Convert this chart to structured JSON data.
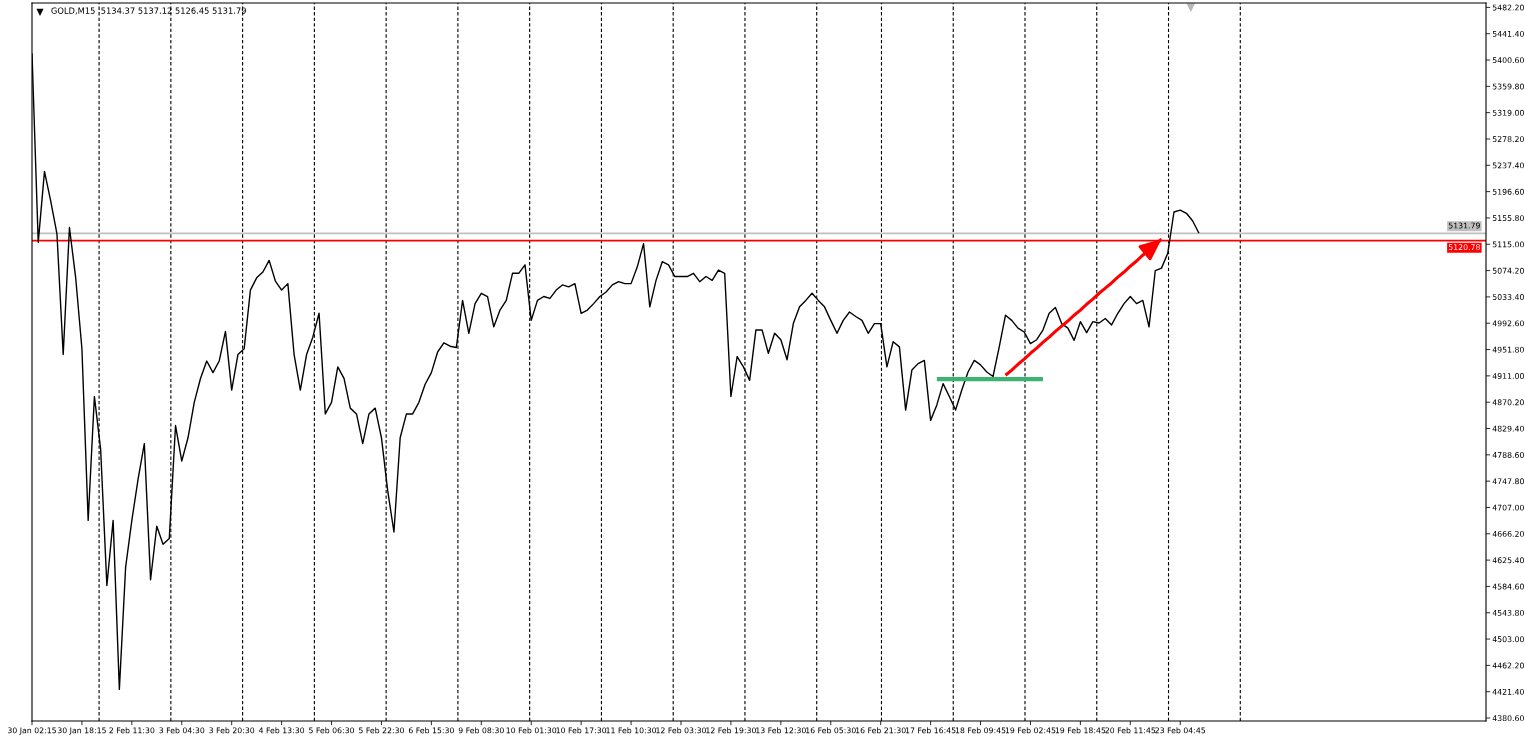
{
  "chart_data": {
    "type": "line",
    "title": "GOLD,M15  5134.37 5137.12 5126.45 5131.79",
    "categories": [
      "30 Jan 02:15",
      null,
      null,
      null,
      null,
      null,
      null,
      null,
      "30 Jan 18:15",
      null,
      null,
      null,
      null,
      null,
      null,
      null,
      "2 Feb 11:30",
      null,
      null,
      null,
      null,
      null,
      null,
      null,
      "3 Feb 04:30",
      null,
      null,
      null,
      null,
      null,
      null,
      null,
      "3 Feb 20:30",
      null,
      null,
      null,
      null,
      null,
      null,
      null,
      "4 Feb 13:30",
      null,
      null,
      null,
      null,
      null,
      null,
      null,
      "5 Feb 06:30",
      null,
      null,
      null,
      null,
      null,
      null,
      null,
      "5 Feb 22:30",
      null,
      null,
      null,
      null,
      null,
      null,
      null,
      "6 Feb 15:30",
      null,
      null,
      null,
      null,
      null,
      null,
      null,
      "9 Feb 08:30",
      null,
      null,
      null,
      null,
      null,
      null,
      null,
      "10 Feb 01:30",
      null,
      null,
      null,
      null,
      null,
      null,
      null,
      "10 Feb 17:30",
      null,
      null,
      null,
      null,
      null,
      null,
      null,
      "11 Feb 10:30",
      null,
      null,
      null,
      null,
      null,
      null,
      null,
      "12 Feb 03:30",
      null,
      null,
      null,
      null,
      null,
      null,
      null,
      "12 Feb 19:30",
      null,
      null,
      null,
      null,
      null,
      null,
      null,
      "13 Feb 12:30",
      null,
      null,
      null,
      null,
      null,
      null,
      null,
      "16 Feb 05:30",
      null,
      null,
      null,
      null,
      null,
      null,
      null,
      "16 Feb 21:30",
      null,
      null,
      null,
      null,
      null,
      null,
      null,
      "17 Feb 16:45",
      null,
      null,
      null,
      null,
      null,
      null,
      null,
      "18 Feb 09:45",
      null,
      null,
      null,
      null,
      null,
      null,
      null,
      "19 Feb 02:45",
      null,
      null,
      null,
      null,
      null,
      null,
      null,
      "19 Feb 18:45",
      null,
      null,
      null,
      null,
      null,
      null,
      null,
      "20 Feb 11:45",
      null,
      null,
      null,
      null,
      null,
      null,
      null,
      "23 Feb 04:45",
      null,
      null,
      null,
      null,
      null,
      null,
      null,
      null,
      null,
      null,
      null,
      null,
      null,
      null,
      null,
      null,
      null,
      null,
      null,
      null,
      null,
      null,
      null,
      null,
      null,
      null,
      null,
      null,
      null,
      null,
      null,
      null,
      null,
      null,
      null,
      null,
      null,
      null,
      null,
      null,
      null,
      null,
      null,
      null,
      null,
      null,
      null,
      null,
      null
    ],
    "series": [
      {
        "color": "#000000",
        "values": [
          5411,
          5118,
          5228,
          5182,
          5131,
          4944,
          5141,
          5063,
          4953,
          4687,
          4879,
          4797,
          4586,
          4687,
          4425,
          4614,
          4687,
          4751,
          4806,
          4595,
          4678,
          4650,
          4659,
          4834,
          4779,
          4815,
          4870,
          4907,
          4934,
          4916,
          4934,
          4980,
          4889,
          4944,
          4953,
          5044,
          5063,
          5072,
          5090,
          5058,
          5044,
          5054,
          4944,
          4889,
          4944,
          4971,
          5008,
          4852,
          4870,
          4925,
          4907,
          4861,
          4852,
          4806,
          4852,
          4861,
          4815,
          4733,
          4669,
          4815,
          4852,
          4852,
          4870,
          4898,
          4916,
          4948,
          4962,
          4957,
          4955,
          5028,
          4977,
          5023,
          5039,
          5034,
          4987,
          5013,
          5028,
          5070,
          5070,
          5083,
          4997,
          5028,
          5034,
          5031,
          5044,
          5052,
          5049,
          5054,
          5008,
          5013,
          5023,
          5034,
          5041,
          5052,
          5057,
          5054,
          5054,
          5080,
          5116,
          5018,
          5059,
          5088,
          5083,
          5065,
          5065,
          5065,
          5070,
          5057,
          5065,
          5059,
          5075,
          5070,
          4879,
          4941,
          4925,
          4904,
          4982,
          4982,
          4946,
          4977,
          4967,
          4936,
          4992,
          5018,
          5028,
          5039,
          5028,
          5018,
          4997,
          4977,
          4997,
          5010,
          5003,
          4997,
          4977,
          4992,
          4992,
          4925,
          4964,
          4956,
          4858,
          4920,
          4930,
          4935,
          4842,
          4866,
          4899,
          4879,
          4858,
          4889,
          4917,
          4935,
          4928,
          4917,
          4910,
          4956,
          5005,
          4997,
          4985,
          4979,
          4961,
          4967,
          4982,
          5008,
          5017,
          4992,
          4985,
          4966,
          4995,
          4978,
          4995,
          4993,
          5000,
          4990,
          5008,
          5023,
          5034,
          5023,
          5028,
          4987,
          5074,
          5078,
          5101,
          5165,
          5168,
          5163,
          5151,
          5132,
          null,
          null,
          null,
          null,
          null,
          null,
          null,
          null,
          null,
          null,
          null,
          null,
          null,
          null,
          null,
          null,
          null,
          null,
          null,
          null,
          null,
          null,
          null,
          null,
          null,
          null,
          null,
          null,
          null,
          null,
          null,
          null,
          null,
          null,
          null,
          null,
          null,
          null,
          null,
          null,
          null,
          null,
          null,
          null,
          null,
          null
        ]
      },
      {
        "type": "line",
        "color": "#3cb371",
        "values": [
          null,
          null,
          null,
          null,
          null,
          null,
          null,
          null,
          null,
          null,
          null,
          null,
          null,
          null,
          null,
          null,
          null,
          null,
          null,
          null,
          null,
          null,
          null,
          null,
          null,
          null,
          null,
          null,
          null,
          null,
          null,
          null,
          null,
          null,
          null,
          null,
          null,
          null,
          null,
          null,
          null,
          null,
          null,
          null,
          null,
          null,
          null,
          null,
          null,
          null,
          null,
          null,
          null,
          null,
          null,
          null,
          null,
          null,
          null,
          null,
          null,
          null,
          null,
          null,
          null,
          null,
          null,
          null,
          null,
          null,
          null,
          null,
          null,
          null,
          null,
          null,
          null,
          null,
          null,
          null,
          null,
          null,
          null,
          null,
          null,
          null,
          null,
          null,
          null,
          null,
          null,
          null,
          null,
          null,
          null,
          null,
          null,
          null,
          null,
          null,
          null,
          null,
          null,
          null,
          null,
          null,
          null,
          null,
          null,
          null,
          null,
          null,
          null,
          null,
          null,
          null,
          null,
          null,
          null,
          null,
          null,
          null,
          null,
          null,
          null,
          null,
          null,
          null,
          null,
          null,
          null,
          null,
          null,
          null,
          null,
          null,
          null,
          null,
          null,
          null,
          null,
          null,
          null,
          null,
          null,
          4906,
          4906,
          4906,
          4906,
          4906,
          4906,
          4906,
          4906,
          4906,
          4906,
          4906,
          4906,
          4906,
          4906,
          4906,
          4906,
          4906,
          4906,
          null,
          null,
          null,
          null,
          null,
          null,
          null,
          null,
          null,
          null,
          null,
          null,
          null,
          null,
          null,
          null,
          null,
          null,
          null,
          null,
          null,
          null,
          null,
          null,
          null,
          null,
          null,
          null,
          null,
          null,
          null,
          null,
          null,
          null,
          null,
          null,
          null,
          null,
          null,
          null,
          null,
          null,
          null,
          null,
          null,
          null,
          null,
          null,
          null,
          null,
          null,
          null,
          null,
          null,
          null,
          null,
          null,
          null,
          null,
          null,
          null,
          null,
          null,
          null,
          null,
          null,
          null,
          null,
          null,
          null,
          null
        ]
      },
      {
        "type": "line",
        "color": "#ff0000",
        "values": [
          null,
          null,
          null,
          null,
          null,
          null,
          null,
          null,
          null,
          null,
          null,
          null,
          null,
          null,
          null,
          null,
          null,
          null,
          null,
          null,
          null,
          null,
          null,
          null,
          null,
          null,
          null,
          null,
          null,
          null,
          null,
          null,
          null,
          null,
          null,
          null,
          null,
          null,
          null,
          null,
          null,
          null,
          null,
          null,
          null,
          null,
          null,
          null,
          null,
          null,
          null,
          null,
          null,
          null,
          null,
          null,
          null,
          null,
          null,
          null,
          null,
          null,
          null,
          null,
          null,
          null,
          null,
          null,
          null,
          null,
          null,
          null,
          null,
          null,
          null,
          null,
          null,
          null,
          null,
          null,
          null,
          null,
          null,
          null,
          null,
          null,
          null,
          null,
          null,
          null,
          null,
          null,
          null,
          null,
          null,
          null,
          null,
          null,
          null,
          null,
          null,
          null,
          null,
          null,
          null,
          null,
          null,
          null,
          null,
          null,
          null,
          null,
          null,
          null,
          null,
          null,
          null,
          null,
          null,
          null,
          null,
          null,
          null,
          null,
          null,
          null,
          null,
          null,
          null,
          null,
          null,
          null,
          null,
          null,
          null,
          null,
          null,
          null,
          null,
          null,
          null,
          null,
          null,
          null,
          null,
          null,
          null,
          null,
          null,
          null,
          null,
          null,
          null,
          null,
          null,
          null,
          4912,
          4920,
          4929,
          4937,
          4946,
          4954,
          4963,
          4971,
          4980,
          4988,
          4996,
          5005,
          5013,
          5022,
          5030,
          5039,
          5047,
          5055,
          5064,
          5072,
          5081,
          5089,
          5098,
          5106,
          5115,
          5123,
          null,
          null,
          null,
          null,
          null,
          null,
          null,
          null,
          null,
          null,
          null,
          null,
          null,
          null,
          null,
          null,
          null,
          null,
          null,
          null,
          null,
          null,
          null,
          null,
          null,
          null,
          null,
          null,
          null,
          null,
          null,
          null,
          null,
          null,
          null,
          null,
          null,
          null,
          null,
          null,
          null,
          null,
          null,
          null,
          null,
          null,
          null,
          null,
          null,
          null,
          null,
          null
        ]
      }
    ],
    "ylim": [
      4376,
      5489
    ],
    "yticks": [
      {
        "value": 4380.6,
        "label": "4380.60"
      },
      {
        "value": 4421.4,
        "label": "4421.40"
      },
      {
        "value": 4462.2,
        "label": "4462.20"
      },
      {
        "value": 4503,
        "label": "4503.00"
      },
      {
        "value": 4543.8,
        "label": "4543.80"
      },
      {
        "value": 4584.6,
        "label": "4584.60"
      },
      {
        "value": 4625.4,
        "label": "4625.40"
      },
      {
        "value": 4666.2,
        "label": "4666.20"
      },
      {
        "value": 4707,
        "label": "4707.00"
      },
      {
        "value": 4747.8,
        "label": "4747.80"
      },
      {
        "value": 4788.6,
        "label": "4788.60"
      },
      {
        "value": 4829.4,
        "label": "4829.40"
      },
      {
        "value": 4870.2,
        "label": "4870.20"
      },
      {
        "value": 4911,
        "label": "4911.00"
      },
      {
        "value": 4951.8,
        "label": "4951.80"
      },
      {
        "value": 4992.6,
        "label": "4992.60"
      },
      {
        "value": 5033.4,
        "label": "5033.40"
      },
      {
        "value": 5074.2,
        "label": "5074.20"
      },
      {
        "value": 5115,
        "label": "5115.00"
      },
      {
        "value": 5155.8,
        "label": "5155.80"
      },
      {
        "value": 5196.6,
        "label": "5196.60"
      },
      {
        "value": 5237.4,
        "label": "5237.40"
      },
      {
        "value": 5278.2,
        "label": "5278.20"
      },
      {
        "value": 5319,
        "label": "5319.00"
      },
      {
        "value": 5359.8,
        "label": "5359.80"
      },
      {
        "value": 5400.6,
        "label": "5400.60"
      },
      {
        "value": 5441.4,
        "label": "5441.40"
      },
      {
        "value": 5482.2,
        "label": "5482.20"
      }
    ],
    "ref_lines": [
      {
        "axis": "y",
        "value": 5131.79,
        "label": "5131.79",
        "color": "#c0c0c0"
      },
      {
        "axis": "y",
        "value": 5120.78,
        "label": "5120.78",
        "color": "#ff0000"
      }
    ]
  }
}
